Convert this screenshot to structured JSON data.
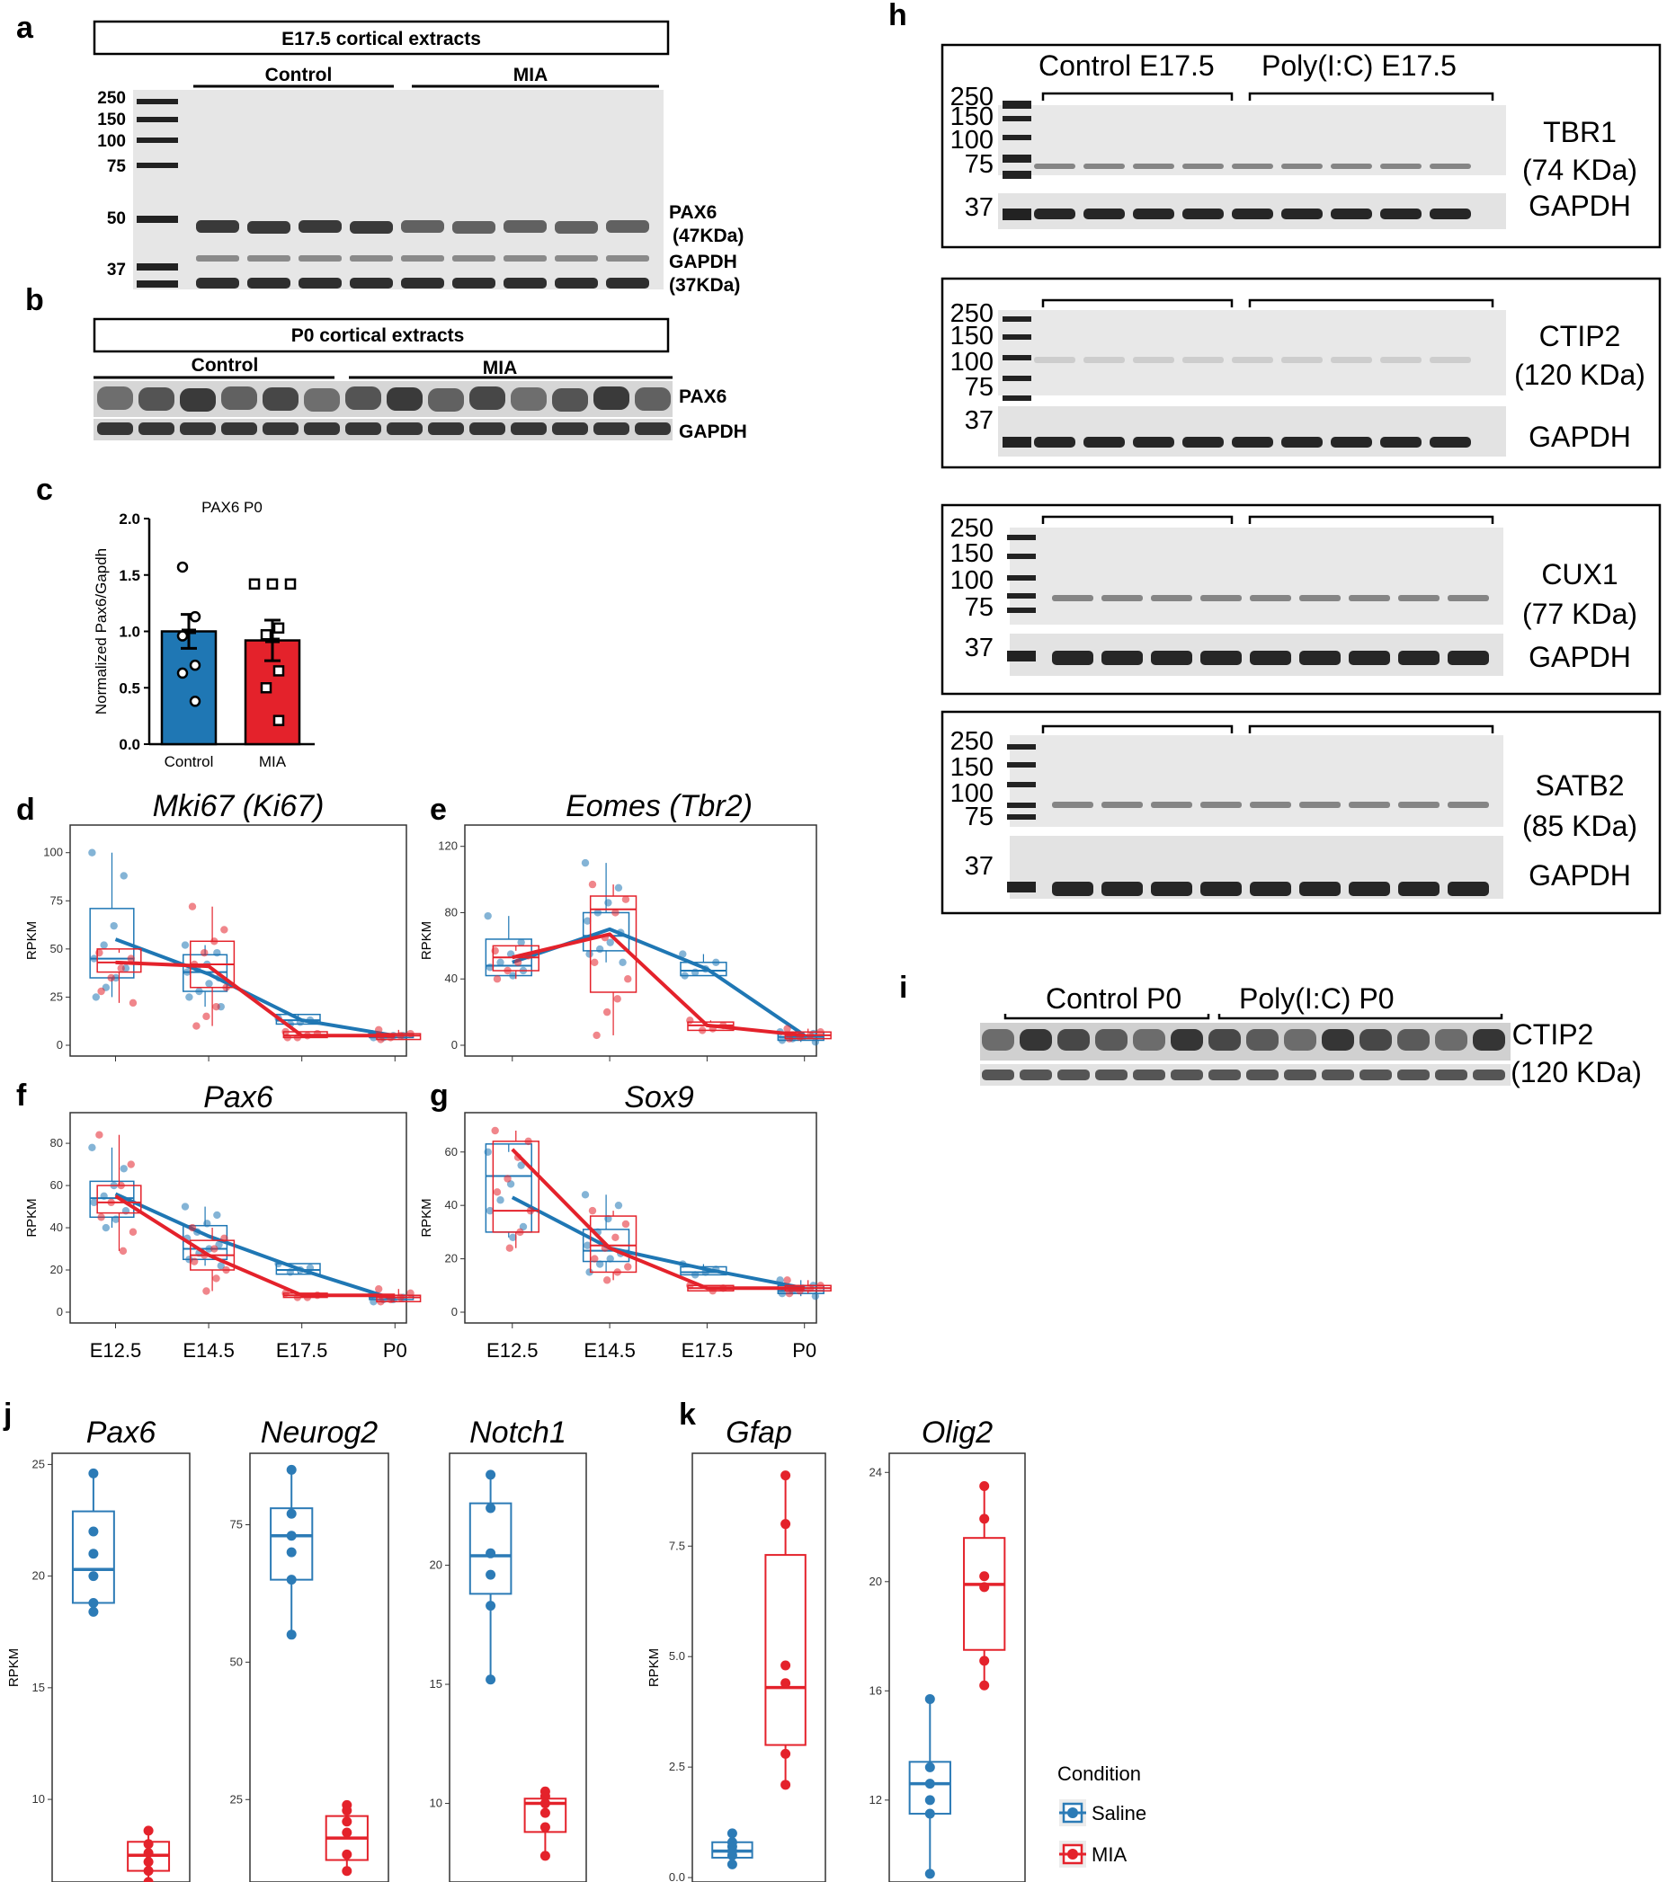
{
  "panel_labels": [
    "a",
    "b",
    "c",
    "d",
    "e",
    "f",
    "g",
    "h",
    "i",
    "j",
    "k"
  ],
  "panel_a": {
    "title": "E17.5 cortical extracts",
    "groups": [
      "Control",
      "MIA"
    ],
    "markers": [
      "250",
      "150",
      "100",
      "75",
      "50",
      "37"
    ],
    "bands": [
      "PAX6",
      "(47KDa)",
      "GAPDH",
      "(37KDa)"
    ]
  },
  "panel_b": {
    "title": "P0 cortical extracts",
    "groups": [
      "Control",
      "MIA"
    ],
    "bands": [
      "PAX6",
      "GAPDH"
    ]
  },
  "panel_h": {
    "groups": [
      "Control E17.5",
      "Poly(I:C) E17.5"
    ],
    "markers": [
      "250",
      "150",
      "100",
      "75",
      "37"
    ],
    "blots": [
      {
        "protein": "TBR1",
        "size": "(74 KDa)",
        "loading": "GAPDH"
      },
      {
        "protein": "CTIP2",
        "size": "(120 KDa)",
        "loading": "GAPDH"
      },
      {
        "protein": "CUX1",
        "size": "(77 KDa)",
        "loading": "GAPDH"
      },
      {
        "protein": "SATB2",
        "size": "(85 KDa)",
        "loading": "GAPDH"
      }
    ]
  },
  "panel_i": {
    "groups": [
      "Control P0",
      "Poly(I:C) P0"
    ],
    "protein": "CTIP2",
    "size": "(120 KDa)"
  },
  "colors": {
    "control": "#1f77b4",
    "mia": "#e4222b",
    "saline": "#2c7bb6"
  },
  "legend": {
    "title": "Condition",
    "items": [
      "Saline",
      "MIA"
    ]
  },
  "chart_data": [
    {
      "panel": "c",
      "type": "bar",
      "title": "PAX6 P0",
      "ylabel": "Normalized Pax6/Gapdh",
      "categories": [
        "Control",
        "MIA"
      ],
      "values": [
        1.0,
        0.92
      ],
      "errors": [
        0.15,
        0.18
      ],
      "ylim": [
        0,
        2.0
      ],
      "yticks": [
        "0.0",
        "0.5",
        "1.0",
        "1.5",
        "2.0"
      ],
      "points": [
        [
          1.57,
          1.13,
          0.96,
          0.7,
          0.63,
          0.38
        ],
        [
          1.42,
          1.42,
          1.42,
          1.03,
          0.97,
          0.65,
          0.5,
          0.21
        ]
      ]
    },
    {
      "panel": "d",
      "type": "box",
      "title": "Mki67 (Ki67)",
      "ylabel": "RPKM",
      "categories": [
        "E12.5",
        "E14.5",
        "E17.5",
        "P0"
      ],
      "ylim": [
        0,
        105
      ],
      "yticks": [
        "0",
        "25",
        "50",
        "75",
        "100"
      ],
      "series": [
        {
          "condition": "control",
          "boxes": [
            [
              35,
              45,
              71
            ],
            [
              28,
              38,
              47
            ],
            [
              11,
              13,
              16
            ],
            [
              4,
              5,
              6
            ]
          ],
          "trend": [
            55,
            37,
            13,
            5
          ],
          "points": [
            [
              100,
              88,
              62,
              52,
              45,
              40,
              35,
              30,
              25
            ],
            [
              52,
              48,
              42,
              40,
              38,
              35,
              32,
              28,
              25,
              20
            ],
            [
              14,
              13,
              12,
              11
            ],
            [
              6,
              5,
              5,
              4,
              4
            ]
          ]
        },
        {
          "condition": "mia",
          "boxes": [
            [
              38,
              43,
              50
            ],
            [
              30,
              42,
              54
            ],
            [
              4,
              5,
              7
            ],
            [
              3,
              5,
              6
            ]
          ],
          "trend": [
            43,
            41,
            5,
            5
          ],
          "points": [
            [
              48,
              45,
              40,
              35,
              28,
              22
            ],
            [
              72,
              60,
              54,
              48,
              42,
              30,
              20,
              15,
              10
            ],
            [
              7,
              6,
              5,
              4,
              4
            ],
            [
              8,
              6,
              5,
              4,
              3
            ]
          ]
        }
      ]
    },
    {
      "panel": "e",
      "type": "box",
      "title": "Eomes (Tbr2)",
      "ylabel": "RPKM",
      "categories": [
        "E12.5",
        "E14.5",
        "E17.5",
        "P0"
      ],
      "ylim": [
        0,
        122
      ],
      "yticks": [
        "0",
        "40",
        "80",
        "120"
      ],
      "series": [
        {
          "condition": "control",
          "boxes": [
            [
              42,
              48,
              64
            ],
            [
              57,
              66,
              80
            ],
            [
              42,
              45,
              50
            ],
            [
              3,
              5,
              8
            ]
          ],
          "trend": [
            50,
            70,
            46,
            6
          ],
          "points": [
            [
              78,
              62,
              55,
              50,
              47,
              45,
              42
            ],
            [
              110,
              95,
              86,
              80,
              75,
              68,
              62,
              58,
              55,
              50
            ],
            [
              55,
              50,
              46,
              44,
              42
            ],
            [
              8,
              7,
              5,
              4,
              3,
              2
            ]
          ]
        },
        {
          "condition": "mia",
          "boxes": [
            [
              45,
              53,
              60
            ],
            [
              32,
              82,
              90
            ],
            [
              9,
              12,
              14
            ],
            [
              4,
              6,
              8
            ]
          ],
          "trend": [
            53,
            67,
            12,
            6
          ],
          "points": [
            [
              57,
              54,
              50,
              45,
              40
            ],
            [
              97,
              88,
              80,
              65,
              50,
              40,
              28,
              20,
              6
            ],
            [
              15,
              12,
              10,
              9
            ],
            [
              10,
              8,
              6,
              5,
              4
            ]
          ]
        }
      ]
    },
    {
      "panel": "f",
      "type": "box",
      "title": "Pax6",
      "ylabel": "RPKM",
      "categories": [
        "E12.5",
        "E14.5",
        "E17.5",
        "P0"
      ],
      "ylim": [
        0,
        86
      ],
      "yticks": [
        "0",
        "20",
        "40",
        "60",
        "80"
      ],
      "series": [
        {
          "condition": "control",
          "boxes": [
            [
              45,
              54,
              62
            ],
            [
              25,
              30,
              41
            ],
            [
              18,
              20,
              23
            ],
            [
              6,
              7,
              8
            ]
          ],
          "trend": [
            56,
            36,
            20,
            6
          ],
          "points": [
            [
              78,
              68,
              60,
              55,
              52,
              48,
              44,
              40
            ],
            [
              50,
              46,
              42,
              38,
              35,
              32,
              30,
              28,
              25,
              22
            ],
            [
              23,
              21,
              20,
              19
            ],
            [
              8,
              7,
              6,
              6,
              5
            ]
          ]
        },
        {
          "condition": "mia",
          "boxes": [
            [
              47,
              52,
              60
            ],
            [
              20,
              27,
              34
            ],
            [
              7,
              8,
              9
            ],
            [
              5,
              7,
              8
            ]
          ],
          "trend": [
            55,
            27,
            8,
            8
          ],
          "points": [
            [
              84,
              70,
              60,
              52,
              45,
              38,
              29
            ],
            [
              40,
              35,
              30,
              27,
              24,
              20,
              16,
              10
            ],
            [
              9,
              8,
              7,
              7
            ],
            [
              11,
              9,
              7,
              6,
              5
            ]
          ]
        }
      ]
    },
    {
      "panel": "g",
      "type": "box",
      "title": "Sox9",
      "ylabel": "RPKM",
      "categories": [
        "E12.5",
        "E14.5",
        "E17.5",
        "P0"
      ],
      "ylim": [
        0,
        68
      ],
      "yticks": [
        "0",
        "20",
        "40",
        "60"
      ],
      "series": [
        {
          "condition": "control",
          "boxes": [
            [
              30,
              51,
              63
            ],
            [
              19,
              23,
              31
            ],
            [
              14,
              15,
              17
            ],
            [
              7,
              8,
              10
            ]
          ],
          "trend": [
            43,
            24,
            16,
            9
          ],
          "points": [
            [
              60,
              55,
              48,
              42,
              38,
              32,
              28
            ],
            [
              44,
              40,
              35,
              30,
              25,
              22,
              20,
              18,
              15
            ],
            [
              18,
              16,
              15,
              14
            ],
            [
              12,
              10,
              9,
              8,
              7,
              6
            ]
          ]
        },
        {
          "condition": "mia",
          "boxes": [
            [
              30,
              38,
              64
            ],
            [
              15,
              25,
              36
            ],
            [
              8,
              9,
              10
            ],
            [
              8,
              9,
              10
            ]
          ],
          "trend": [
            61,
            24,
            9,
            9
          ],
          "points": [
            [
              68,
              64,
              58,
              50,
              45,
              38,
              30,
              24
            ],
            [
              38,
              33,
              28,
              24,
              20,
              17,
              15,
              12
            ],
            [
              10,
              9,
              8
            ],
            [
              12,
              10,
              9,
              8,
              7
            ]
          ]
        }
      ]
    },
    {
      "panel": "j",
      "type": "box",
      "ylabel": "RPKM",
      "genes": [
        {
          "title": "Pax6",
          "ylim": [
            6.3,
            25.5
          ],
          "yticks": [
            "10",
            "15",
            "20",
            "25"
          ],
          "saline": {
            "box": [
              18.8,
              20.3,
              22.9
            ],
            "whisker": [
              18.4,
              24.6
            ],
            "points": [
              24.6,
              22.0,
              21.0,
              20.0,
              18.8,
              18.4
            ]
          },
          "mia": {
            "box": [
              6.8,
              7.5,
              8.1
            ],
            "whisker": [
              6.3,
              8.6
            ],
            "points": [
              8.6,
              8.0,
              7.6,
              7.2,
              6.8,
              6.3
            ]
          }
        },
        {
          "title": "Neurog2",
          "ylim": [
            10,
            88
          ],
          "yticks": [
            "25",
            "50",
            "75"
          ],
          "saline": {
            "box": [
              65,
              73,
              78
            ],
            "whisker": [
              55,
              85
            ],
            "points": [
              85,
              77,
              73,
              70,
              65,
              55
            ]
          },
          "mia": {
            "box": [
              14,
              18,
              22
            ],
            "whisker": [
              12,
              24
            ],
            "points": [
              24,
              23,
              21,
              19,
              15,
              12
            ]
          }
        },
        {
          "title": "Notch1",
          "ylim": [
            6.7,
            24.7
          ],
          "yticks": [
            "10",
            "15",
            "20"
          ],
          "saline": {
            "box": [
              18.8,
              20.4,
              22.6
            ],
            "whisker": [
              15.2,
              23.8
            ],
            "points": [
              23.8,
              22.4,
              20.5,
              19.6,
              18.3,
              15.2
            ]
          },
          "mia": {
            "box": [
              8.8,
              10.0,
              10.2
            ],
            "whisker": [
              7.8,
              10.5
            ],
            "points": [
              10.5,
              10.3,
              10.0,
              9.6,
              9.0,
              7.8
            ]
          }
        }
      ]
    },
    {
      "panel": "k",
      "type": "box",
      "ylabel": "RPKM",
      "genes": [
        {
          "title": "Gfap",
          "ylim": [
            -0.1,
            9.6
          ],
          "yticks": [
            "0.0",
            "2.5",
            "5.0",
            "7.5"
          ],
          "saline": {
            "box": [
              0.45,
              0.6,
              0.8
            ],
            "whisker": [
              0.3,
              1.0
            ],
            "points": [
              1.0,
              0.8,
              0.7,
              0.6,
              0.5,
              0.3
            ]
          },
          "mia": {
            "box": [
              3.0,
              4.3,
              7.3
            ],
            "whisker": [
              2.1,
              9.1
            ],
            "points": [
              9.1,
              8.0,
              4.8,
              4.4,
              2.8,
              2.1
            ]
          }
        },
        {
          "title": "Olig2",
          "ylim": [
            9.0,
            24.7
          ],
          "yticks": [
            "12",
            "16",
            "20",
            "24"
          ],
          "saline": {
            "box": [
              11.5,
              12.6,
              13.4
            ],
            "whisker": [
              9.3,
              15.7
            ],
            "points": [
              15.7,
              13.2,
              12.6,
              12.0,
              11.5,
              9.3
            ]
          },
          "mia": {
            "box": [
              17.5,
              19.9,
              21.6
            ],
            "whisker": [
              16.2,
              23.5
            ],
            "points": [
              23.5,
              22.3,
              20.2,
              19.8,
              17.1,
              16.2
            ]
          }
        }
      ]
    }
  ]
}
